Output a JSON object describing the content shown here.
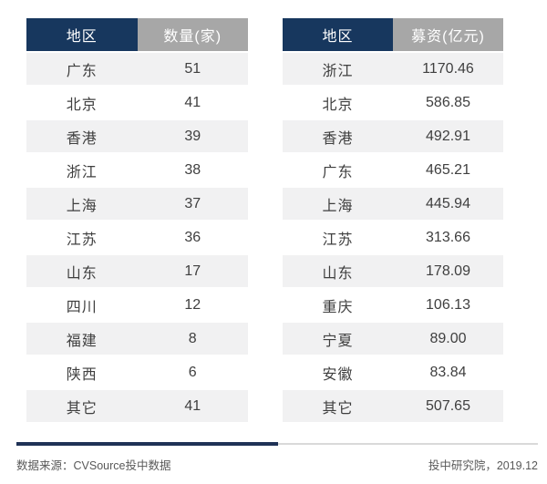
{
  "colors": {
    "header_region_bg": "#17375e",
    "header_value_bg": "#a7a7a7",
    "header_text": "#ffffff",
    "row_alt_bg": "#f1f1f2",
    "row_text": "#3f3f3f",
    "footer_text": "#595959",
    "divider_dark": "#1f3256",
    "divider_light": "#d9d9d9",
    "page_bg": "#ffffff"
  },
  "tables": [
    {
      "name": "deal-count-by-region",
      "headers": {
        "region": "地区",
        "value": "数量(家)"
      },
      "rows": [
        {
          "region": "广东",
          "value": "51"
        },
        {
          "region": "北京",
          "value": "41"
        },
        {
          "region": "香港",
          "value": "39"
        },
        {
          "region": "浙江",
          "value": "38"
        },
        {
          "region": "上海",
          "value": "37"
        },
        {
          "region": "江苏",
          "value": "36"
        },
        {
          "region": "山东",
          "value": "17"
        },
        {
          "region": "四川",
          "value": "12"
        },
        {
          "region": "福建",
          "value": "8"
        },
        {
          "region": "陕西",
          "value": "6"
        },
        {
          "region": "其它",
          "value": "41"
        }
      ]
    },
    {
      "name": "funds-raised-by-region",
      "headers": {
        "region": "地区",
        "value": "募资(亿元)"
      },
      "rows": [
        {
          "region": "浙江",
          "value": "1170.46"
        },
        {
          "region": "北京",
          "value": "586.85"
        },
        {
          "region": "香港",
          "value": "492.91"
        },
        {
          "region": "广东",
          "value": "465.21"
        },
        {
          "region": "上海",
          "value": "445.94"
        },
        {
          "region": "江苏",
          "value": "313.66"
        },
        {
          "region": "山东",
          "value": "178.09"
        },
        {
          "region": "重庆",
          "value": "106.13"
        },
        {
          "region": "宁夏",
          "value": "89.00"
        },
        {
          "region": "安徽",
          "value": "83.84"
        },
        {
          "region": "其它",
          "value": "507.65"
        }
      ]
    }
  ],
  "footer": {
    "source_left": "数据来源：CVSource投中数据",
    "source_right": "投中研究院，2019.12"
  },
  "chart_data": [
    {
      "type": "table",
      "title": "",
      "columns": [
        "地区",
        "数量(家)"
      ],
      "rows": [
        [
          "广东",
          51
        ],
        [
          "北京",
          41
        ],
        [
          "香港",
          39
        ],
        [
          "浙江",
          38
        ],
        [
          "上海",
          37
        ],
        [
          "江苏",
          36
        ],
        [
          "山东",
          17
        ],
        [
          "四川",
          12
        ],
        [
          "福建",
          8
        ],
        [
          "陕西",
          6
        ],
        [
          "其它",
          41
        ]
      ]
    },
    {
      "type": "table",
      "title": "",
      "columns": [
        "地区",
        "募资(亿元)"
      ],
      "rows": [
        [
          "浙江",
          1170.46
        ],
        [
          "北京",
          586.85
        ],
        [
          "香港",
          492.91
        ],
        [
          "广东",
          465.21
        ],
        [
          "上海",
          445.94
        ],
        [
          "江苏",
          313.66
        ],
        [
          "山东",
          178.09
        ],
        [
          "重庆",
          106.13
        ],
        [
          "宁夏",
          89.0
        ],
        [
          "安徽",
          83.84
        ],
        [
          "其它",
          507.65
        ]
      ]
    }
  ]
}
